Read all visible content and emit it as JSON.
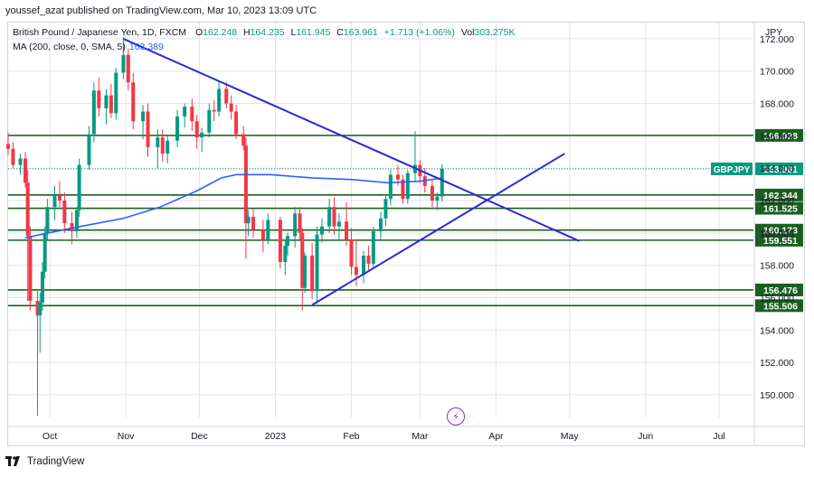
{
  "published": "youssef_azat published on TradingView.com, Mar 10, 2023 13:09 UTC",
  "legend": {
    "symbol": "British Pound / Japanese Yen, 1D, FXCM",
    "o_label": "O",
    "o_value": "162.248",
    "h_label": "H",
    "h_value": "164.235",
    "l_label": "L",
    "l_value": "161.945",
    "c_label": "C",
    "c_value": "163.961",
    "change": "+1.713 (+1.06%)",
    "vol_label": "Vol",
    "vol_value": "303.275K",
    "ma_label": "MA (200, close, 0, SMA, 5)",
    "ma_value": "163.389"
  },
  "footer": {
    "brand": "TradingView"
  },
  "colors": {
    "up": "#089981",
    "down": "#f23645",
    "ma": "#2962ff",
    "trendline": "#2a2ad8",
    "level": "#1b5e20",
    "grid": "#e0e3eb"
  },
  "chart_data": {
    "type": "candlestick",
    "currency": "JPY",
    "symbol_tag": "GBPJPY",
    "last_price": 163.961,
    "y_range": [
      148.6,
      173.0
    ],
    "x_range": [
      "2022-09-14",
      "2023-07-15"
    ],
    "y_ticks": [
      "150.000",
      "152.000",
      "154.000",
      "156.000",
      "158.000",
      "160.000",
      "162.000",
      "164.000",
      "166.000",
      "168.000",
      "170.000",
      "172.000"
    ],
    "x_ticks": [
      {
        "label": "Oct",
        "date": "2022-10-01"
      },
      {
        "label": "Nov",
        "date": "2022-11-01"
      },
      {
        "label": "Dec",
        "date": "2022-12-01"
      },
      {
        "label": "2023",
        "date": "2023-01-01"
      },
      {
        "label": "Feb",
        "date": "2023-02-01"
      },
      {
        "label": "Mar",
        "date": "2023-03-01"
      },
      {
        "label": "Apr",
        "date": "2023-04-01"
      },
      {
        "label": "May",
        "date": "2023-05-01"
      },
      {
        "label": "Jun",
        "date": "2023-06-01"
      },
      {
        "label": "Jul",
        "date": "2023-07-01"
      }
    ],
    "levels": [
      {
        "label": "166.028",
        "value": 166.028
      },
      {
        "label": "162.344",
        "value": 162.344
      },
      {
        "label": "161.525",
        "value": 161.525
      },
      {
        "label": "160.173",
        "value": 160.173
      },
      {
        "label": "159.551",
        "value": 159.551
      },
      {
        "label": "156.476",
        "value": 156.476
      },
      {
        "label": "155.506",
        "value": 155.506
      }
    ],
    "trendlines": [
      {
        "from": {
          "date": "2022-10-31",
          "price": 172.0
        },
        "to": {
          "date": "2023-05-05",
          "price": 159.5
        }
      },
      {
        "from": {
          "date": "2023-01-16",
          "price": 155.55
        },
        "to": {
          "date": "2023-04-29",
          "price": 164.9
        }
      }
    ],
    "ma": [
      [
        "2022-09-21",
        159.7
      ],
      [
        "2022-10-10",
        160.3
      ],
      [
        "2022-10-31",
        160.9
      ],
      [
        "2022-11-15",
        161.6
      ],
      [
        "2022-11-30",
        162.6
      ],
      [
        "2022-12-10",
        163.4
      ],
      [
        "2022-12-16",
        163.6
      ],
      [
        "2022-12-30",
        163.6
      ],
      [
        "2023-01-16",
        163.4
      ],
      [
        "2023-02-01",
        163.3
      ],
      [
        "2023-02-16",
        163.1
      ],
      [
        "2023-03-01",
        163.2
      ],
      [
        "2023-03-10",
        163.389
      ]
    ],
    "candles": [
      [
        "2022-09-14",
        165.5,
        166.2,
        164.8,
        165.2
      ],
      [
        "2022-09-16",
        165.2,
        165.6,
        164.0,
        164.2
      ],
      [
        "2022-09-19",
        164.2,
        164.9,
        163.6,
        164.6
      ],
      [
        "2022-09-21",
        164.6,
        165.0,
        162.8,
        163.1
      ],
      [
        "2022-09-22",
        163.1,
        163.9,
        155.8,
        159.8
      ],
      [
        "2022-09-23",
        159.8,
        160.4,
        155.2,
        155.8
      ],
      [
        "2022-09-26",
        155.8,
        156.4,
        148.7,
        154.9
      ],
      [
        "2022-09-27",
        154.9,
        156.3,
        152.6,
        155.7
      ],
      [
        "2022-09-28",
        155.7,
        158.2,
        155.2,
        157.6
      ],
      [
        "2022-09-29",
        157.6,
        160.4,
        157.2,
        160.0
      ],
      [
        "2022-09-30",
        160.0,
        162.1,
        159.6,
        161.6
      ],
      [
        "2022-10-03",
        161.6,
        162.9,
        160.8,
        162.3
      ],
      [
        "2022-10-05",
        162.3,
        163.2,
        161.6,
        162.0
      ],
      [
        "2022-10-07",
        162.0,
        162.5,
        160.0,
        160.6
      ],
      [
        "2022-10-10",
        160.6,
        161.3,
        159.3,
        160.1
      ],
      [
        "2022-10-12",
        160.1,
        161.6,
        159.7,
        161.4
      ],
      [
        "2022-10-13",
        161.4,
        164.6,
        161.0,
        164.2
      ],
      [
        "2022-10-17",
        164.2,
        166.6,
        163.9,
        166.1
      ],
      [
        "2022-10-19",
        166.1,
        169.3,
        165.6,
        168.8
      ],
      [
        "2022-10-21",
        168.8,
        169.6,
        167.2,
        167.7
      ],
      [
        "2022-10-24",
        167.7,
        168.9,
        166.7,
        168.5
      ],
      [
        "2022-10-26",
        168.5,
        169.2,
        167.1,
        167.4
      ],
      [
        "2022-10-28",
        167.4,
        170.2,
        167.0,
        169.9
      ],
      [
        "2022-10-31",
        169.9,
        172.1,
        169.5,
        171.0
      ],
      [
        "2022-11-02",
        171.0,
        171.4,
        168.8,
        169.3
      ],
      [
        "2022-11-04",
        169.3,
        169.9,
        166.4,
        166.9
      ],
      [
        "2022-11-08",
        166.9,
        167.9,
        165.8,
        167.5
      ],
      [
        "2022-11-10",
        167.5,
        168.0,
        164.7,
        165.3
      ],
      [
        "2022-11-14",
        165.3,
        166.4,
        164.0,
        165.9
      ],
      [
        "2022-11-16",
        165.9,
        166.4,
        164.4,
        164.9
      ],
      [
        "2022-11-18",
        164.9,
        166.0,
        164.3,
        165.7
      ],
      [
        "2022-11-22",
        165.7,
        167.6,
        165.3,
        167.2
      ],
      [
        "2022-11-25",
        167.2,
        168.0,
        166.5,
        167.8
      ],
      [
        "2022-11-28",
        167.8,
        168.3,
        166.3,
        166.9
      ],
      [
        "2022-11-30",
        166.9,
        167.3,
        165.2,
        165.9
      ],
      [
        "2022-12-02",
        165.9,
        166.5,
        165.0,
        166.2
      ],
      [
        "2022-12-05",
        166.2,
        168.0,
        165.9,
        167.6
      ],
      [
        "2022-12-07",
        167.6,
        168.2,
        166.9,
        167.5
      ],
      [
        "2022-12-09",
        167.5,
        169.4,
        167.2,
        168.9
      ],
      [
        "2022-12-12",
        168.9,
        169.3,
        167.7,
        168.0
      ],
      [
        "2022-12-14",
        168.0,
        168.5,
        167.0,
        167.5
      ],
      [
        "2022-12-16",
        167.5,
        167.9,
        165.8,
        166.1
      ],
      [
        "2022-12-19",
        166.1,
        166.6,
        165.1,
        165.4
      ],
      [
        "2022-12-20",
        165.4,
        165.9,
        158.4,
        160.6
      ],
      [
        "2022-12-21",
        160.6,
        161.4,
        159.8,
        161.0
      ],
      [
        "2022-12-23",
        161.0,
        161.5,
        159.7,
        160.2
      ],
      [
        "2022-12-27",
        160.2,
        160.8,
        158.8,
        159.6
      ],
      [
        "2022-12-29",
        159.6,
        161.2,
        159.3,
        160.8
      ],
      [
        "2023-01-03",
        160.8,
        161.0,
        157.8,
        158.2
      ],
      [
        "2023-01-05",
        158.2,
        159.6,
        157.4,
        159.2
      ],
      [
        "2023-01-06",
        159.2,
        160.0,
        158.6,
        159.8
      ],
      [
        "2023-01-09",
        159.8,
        161.6,
        159.1,
        161.2
      ],
      [
        "2023-01-11",
        161.2,
        161.6,
        159.6,
        160.0
      ],
      [
        "2023-01-12",
        160.0,
        160.3,
        155.2,
        156.6
      ],
      [
        "2023-01-13",
        156.6,
        158.8,
        156.3,
        158.6
      ],
      [
        "2023-01-16",
        158.6,
        159.4,
        155.9,
        156.4
      ],
      [
        "2023-01-18",
        156.4,
        160.4,
        155.6,
        159.9
      ],
      [
        "2023-01-20",
        159.9,
        160.9,
        159.4,
        160.4
      ],
      [
        "2023-01-23",
        160.4,
        162.1,
        160.0,
        161.6
      ],
      [
        "2023-01-25",
        161.6,
        162.2,
        159.9,
        160.4
      ],
      [
        "2023-01-27",
        160.4,
        161.2,
        159.6,
        160.7
      ],
      [
        "2023-01-30",
        160.7,
        161.9,
        159.2,
        159.6
      ],
      [
        "2023-02-01",
        159.6,
        160.3,
        157.4,
        157.9
      ],
      [
        "2023-02-03",
        157.9,
        159.6,
        156.7,
        157.4
      ],
      [
        "2023-02-06",
        157.4,
        158.9,
        156.9,
        158.6
      ],
      [
        "2023-02-08",
        158.6,
        159.2,
        157.6,
        158.1
      ],
      [
        "2023-02-10",
        158.1,
        160.4,
        157.8,
        160.1
      ],
      [
        "2023-02-13",
        160.1,
        161.3,
        159.5,
        160.9
      ],
      [
        "2023-02-15",
        160.9,
        162.4,
        160.4,
        162.1
      ],
      [
        "2023-02-17",
        162.1,
        163.9,
        161.7,
        163.6
      ],
      [
        "2023-02-20",
        163.6,
        164.2,
        162.9,
        163.3
      ],
      [
        "2023-02-22",
        163.3,
        163.6,
        161.8,
        162.1
      ],
      [
        "2023-02-24",
        162.1,
        163.9,
        161.8,
        163.7
      ],
      [
        "2023-02-27",
        163.7,
        166.3,
        163.2,
        164.2
      ],
      [
        "2023-03-01",
        164.2,
        164.5,
        163.1,
        163.5
      ],
      [
        "2023-03-03",
        163.5,
        164.0,
        162.5,
        162.9
      ],
      [
        "2023-03-06",
        162.9,
        163.3,
        161.6,
        162.0
      ],
      [
        "2023-03-08",
        162.0,
        162.5,
        161.4,
        162.248
      ],
      [
        "2023-03-10",
        162.248,
        164.235,
        161.945,
        163.961
      ]
    ]
  }
}
